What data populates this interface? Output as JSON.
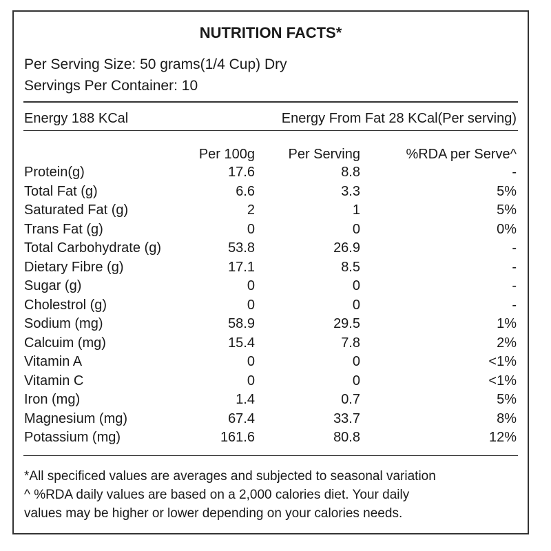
{
  "header": {
    "title": "NUTRITION FACTS*",
    "serving_size": "Per Serving Size: 50 grams(1/4 Cup) Dry",
    "servings_per_container": "Servings Per Container: 10"
  },
  "energy": {
    "total": "Energy 188 KCal",
    "from_fat": "Energy From Fat 28 KCal(Per serving)"
  },
  "table": {
    "headers": [
      "Per 100g",
      "Per Serving",
      "%RDA per Serve^"
    ],
    "rows": [
      [
        "Protein(g)",
        "17.6",
        "8.8",
        "-"
      ],
      [
        "Total Fat (g)",
        "6.6",
        "3.3",
        "5%"
      ],
      [
        "Saturated Fat (g)",
        "2",
        "1",
        "5%"
      ],
      [
        "Trans Fat (g)",
        "0",
        "0",
        "0%"
      ],
      [
        "Total Carbohydrate (g)",
        "53.8",
        "26.9",
        "-"
      ],
      [
        "Dietary Fibre (g)",
        "17.1",
        "8.5",
        "-"
      ],
      [
        "Sugar (g)",
        "0",
        "0",
        "-"
      ],
      [
        "Cholestrol (g)",
        "0",
        "0",
        "-"
      ],
      [
        "Sodium (mg)",
        "58.9",
        "29.5",
        "1%"
      ],
      [
        "Calcuim (mg)",
        "15.4",
        "7.8",
        "2%"
      ],
      [
        "Vitamin A",
        "0",
        "0",
        "<1%"
      ],
      [
        "Vitamin C",
        "0",
        "0",
        "<1%"
      ],
      [
        "Iron (mg)",
        "1.4",
        "0.7",
        "5%"
      ],
      [
        "Magnesium (mg)",
        "67.4",
        "33.7",
        "8%"
      ],
      [
        "Potassium (mg)",
        "161.6",
        "80.8",
        "12%"
      ]
    ]
  },
  "footnotes": [
    "*All specificed values are averages and subjected to seasonal variation",
    "^ %RDA daily values are based on a 2,000 calories diet. Your daily",
    "values may be higher or lower depending on your calories needs."
  ]
}
